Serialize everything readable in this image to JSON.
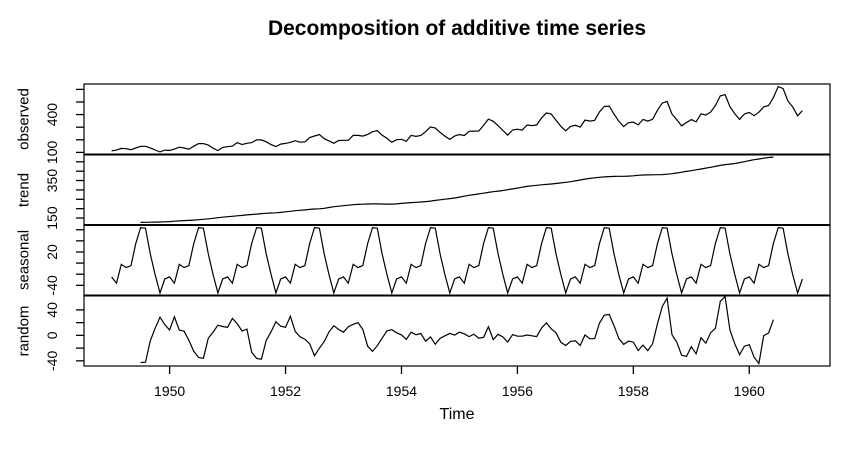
{
  "title": "Decomposition of additive time series",
  "xlabel": "Time",
  "chart_data": {
    "type": "line",
    "title": "Decomposition of additive time series",
    "xlabel": "Time",
    "line_color": "#000000",
    "background": "#ffffff",
    "frequency": 12,
    "xlim": [
      1948.523,
      1961.393
    ],
    "xticks": [
      1950,
      1952,
      1954,
      1956,
      1958,
      1960
    ],
    "legend": "none",
    "grid": false,
    "panels": [
      {
        "name": "observed",
        "ylab": "observed",
        "start": 1949.0,
        "ylim": [
          83.28,
          642.72
        ],
        "yticks": [
          100,
          200,
          300,
          400,
          500,
          600
        ],
        "ytick_labels": [
          100,
          400
        ],
        "values": [
          112,
          118,
          132,
          129,
          121,
          135,
          148,
          148,
          136,
          119,
          104,
          118,
          115,
          126,
          141,
          135,
          125,
          149,
          170,
          170,
          158,
          133,
          114,
          140,
          145,
          150,
          178,
          163,
          172,
          178,
          199,
          199,
          184,
          162,
          146,
          166,
          171,
          180,
          193,
          181,
          183,
          218,
          230,
          242,
          209,
          191,
          172,
          194,
          196,
          196,
          236,
          235,
          229,
          243,
          264,
          272,
          237,
          211,
          180,
          201,
          204,
          188,
          235,
          227,
          234,
          264,
          302,
          293,
          259,
          229,
          203,
          229,
          242,
          233,
          267,
          269,
          270,
          315,
          364,
          347,
          312,
          274,
          237,
          278,
          284,
          277,
          317,
          313,
          318,
          374,
          413,
          405,
          355,
          306,
          271,
          306,
          315,
          301,
          356,
          348,
          355,
          422,
          465,
          467,
          404,
          347,
          305,
          336,
          340,
          318,
          362,
          348,
          363,
          435,
          491,
          505,
          404,
          359,
          310,
          337,
          360,
          342,
          406,
          396,
          420,
          472,
          548,
          559,
          463,
          407,
          362,
          405,
          417,
          391,
          419,
          461,
          472,
          535,
          622,
          606,
          508,
          461,
          390,
          432
        ]
      },
      {
        "name": "trend",
        "ylab": "trend",
        "start": 1949.5,
        "ylim": [
          112.86,
          488.97
        ],
        "yticks": [
          150,
          200,
          250,
          300,
          350,
          400,
          450
        ],
        "ytick_labels": [
          150,
          350
        ],
        "values": [
          126.79,
          127.25,
          127.96,
          128.58,
          129.0,
          129.75,
          131.25,
          133.08,
          134.92,
          136.42,
          137.42,
          138.75,
          140.92,
          143.17,
          145.71,
          148.42,
          151.54,
          154.71,
          157.13,
          159.54,
          161.83,
          164.13,
          166.67,
          169.08,
          171.25,
          173.58,
          175.46,
          176.83,
          178.04,
          180.17,
          183.13,
          186.21,
          189.04,
          191.29,
          193.58,
          195.83,
          198.04,
          199.38,
          202.21,
          206.25,
          210.42,
          213.38,
          215.83,
          218.5,
          220.92,
          222.92,
          224.08,
          224.71,
          225.33,
          225.33,
          224.96,
          224.58,
          224.46,
          225.54,
          228.0,
          230.46,
          232.25,
          233.92,
          235.63,
          237.75,
          240.5,
          243.96,
          247.17,
          250.25,
          253.5,
          257.13,
          261.83,
          266.67,
          271.13,
          275.21,
          278.92,
          282.67,
          286.71,
          290.67,
          293.79,
          297.17,
          301.0,
          305.46,
          309.96,
          314.42,
          318.63,
          321.75,
          324.5,
          327.08,
          329.54,
          331.83,
          334.46,
          337.54,
          340.54,
          344.08,
          348.25,
          353.0,
          357.63,
          361.38,
          364.5,
          367.17,
          369.46,
          371.21,
          372.17,
          372.42,
          372.75,
          373.63,
          375.25,
          377.92,
          379.5,
          380.0,
          380.71,
          380.96,
          381.83,
          383.67,
          386.5,
          390.33,
          394.71,
          398.63,
          402.54,
          407.17,
          411.88,
          416.33,
          420.5,
          425.5,
          430.71,
          435.13,
          437.71,
          440.96,
          445.88,
          450.63,
          456.33,
          461.38,
          465.21,
          469.33,
          472.75,
          475.04
        ]
      },
      {
        "name": "seasonal",
        "ylab": "seasonal",
        "start": 1949.0,
        "ylim": [
          -58.29,
          68.53
        ],
        "yticks": [
          -40,
          -20,
          0,
          20,
          40,
          60
        ],
        "ytick_labels": [
          -40,
          20
        ],
        "seasonal_figure": [
          -24.75,
          -36.19,
          -2.24,
          -8.04,
          -4.51,
          35.4,
          63.83,
          62.82,
          16.52,
          -20.64,
          -53.59,
          -28.62
        ],
        "repeat": 12
      },
      {
        "name": "random",
        "ylab": "random",
        "start": 1949.5,
        "ylim": [
          -48.07,
          62.61
        ],
        "yticks": [
          -40,
          -20,
          0,
          20,
          40
        ],
        "ytick_labels": [
          -40,
          0,
          40
        ],
        "values_derivation": "observed - trend - seasonal (Jul 1949 through Jun 1960)"
      }
    ]
  }
}
